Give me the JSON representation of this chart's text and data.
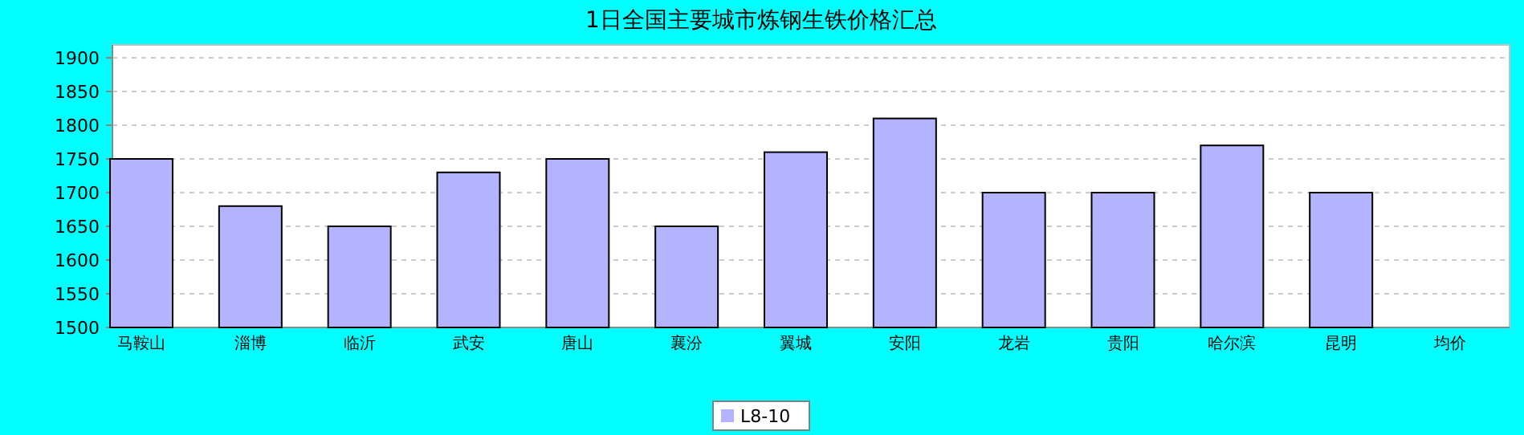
{
  "chart_data": {
    "type": "bar",
    "title": "1日全国主要城市炼钢生铁价格汇总",
    "categories": [
      "马鞍山",
      "淄博",
      "临沂",
      "武安",
      "唐山",
      "襄汾",
      "翼城",
      "安阳",
      "龙岩",
      "贵阳",
      "哈尔滨",
      "昆明",
      "均价"
    ],
    "series": [
      {
        "name": "L8-10",
        "color": "#b3b3ff",
        "values": [
          1750,
          1680,
          1650,
          1730,
          1750,
          1650,
          1760,
          1810,
          1700,
          1700,
          1770,
          1700,
          null
        ]
      }
    ],
    "ylim": [
      1500,
      1900
    ],
    "yticks": [
      1500,
      1550,
      1600,
      1650,
      1700,
      1750,
      1800,
      1850,
      1900
    ],
    "grid": "y",
    "legend": "bottom"
  }
}
